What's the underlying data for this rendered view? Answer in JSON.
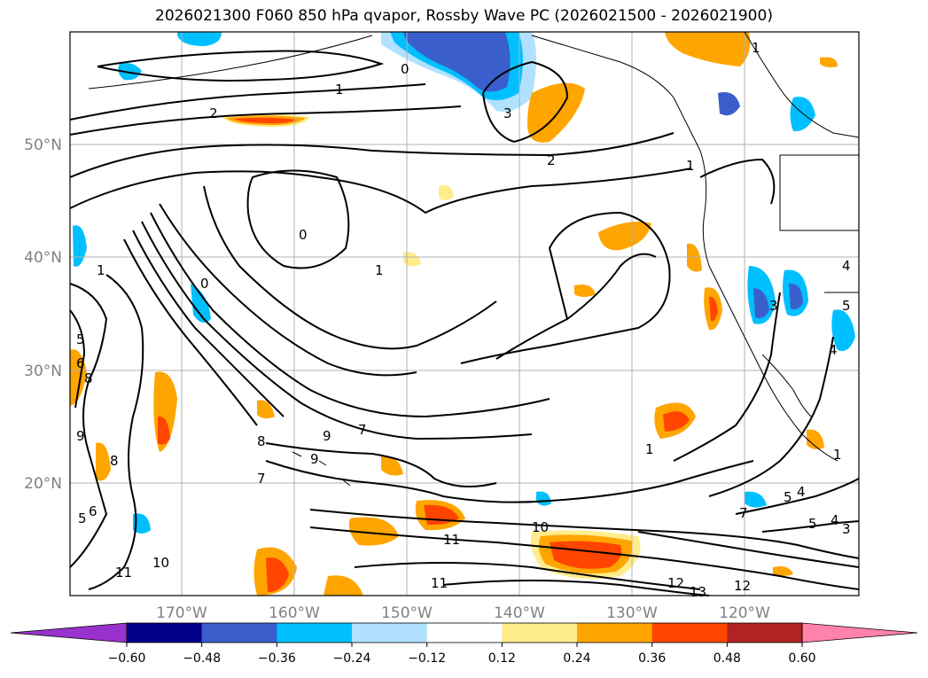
{
  "title": "2026021300 F060 850 hPa qvapor, Rossby Wave PC (2026021500 - 2026021900)",
  "map": {
    "lat_labels": [
      "50°N",
      "40°N",
      "30°N",
      "20°N"
    ],
    "lon_labels": [
      "170°W",
      "160°W",
      "150°W",
      "140°W",
      "130°W",
      "120°W"
    ],
    "contour_labels": [
      "0",
      "1",
      "2",
      "3",
      "2",
      "1",
      "0",
      "1",
      "0",
      "1",
      "5",
      "6",
      "9",
      "8",
      "9",
      "8",
      "9",
      "7",
      "6",
      "5",
      "8",
      "7",
      "10",
      "11",
      "11",
      "10",
      "11",
      "12",
      "13",
      "12",
      "4",
      "5",
      "4",
      "3",
      "5",
      "4",
      "7",
      "5",
      "4",
      "3",
      "1",
      "1",
      "1"
    ]
  },
  "colorbar": {
    "ticks": [
      "−0.60",
      "−0.48",
      "−0.36",
      "−0.24",
      "−0.12",
      "0.12",
      "0.24",
      "0.36",
      "0.48",
      "0.60"
    ],
    "colors": [
      "#9932cc",
      "#00008b",
      "#3a5fcd",
      "#00bfff",
      "#b0e2ff",
      "#ffffff",
      "#ffec8b",
      "#ffa500",
      "#ff4500",
      "#b22222",
      "#ff82ab"
    ]
  }
}
